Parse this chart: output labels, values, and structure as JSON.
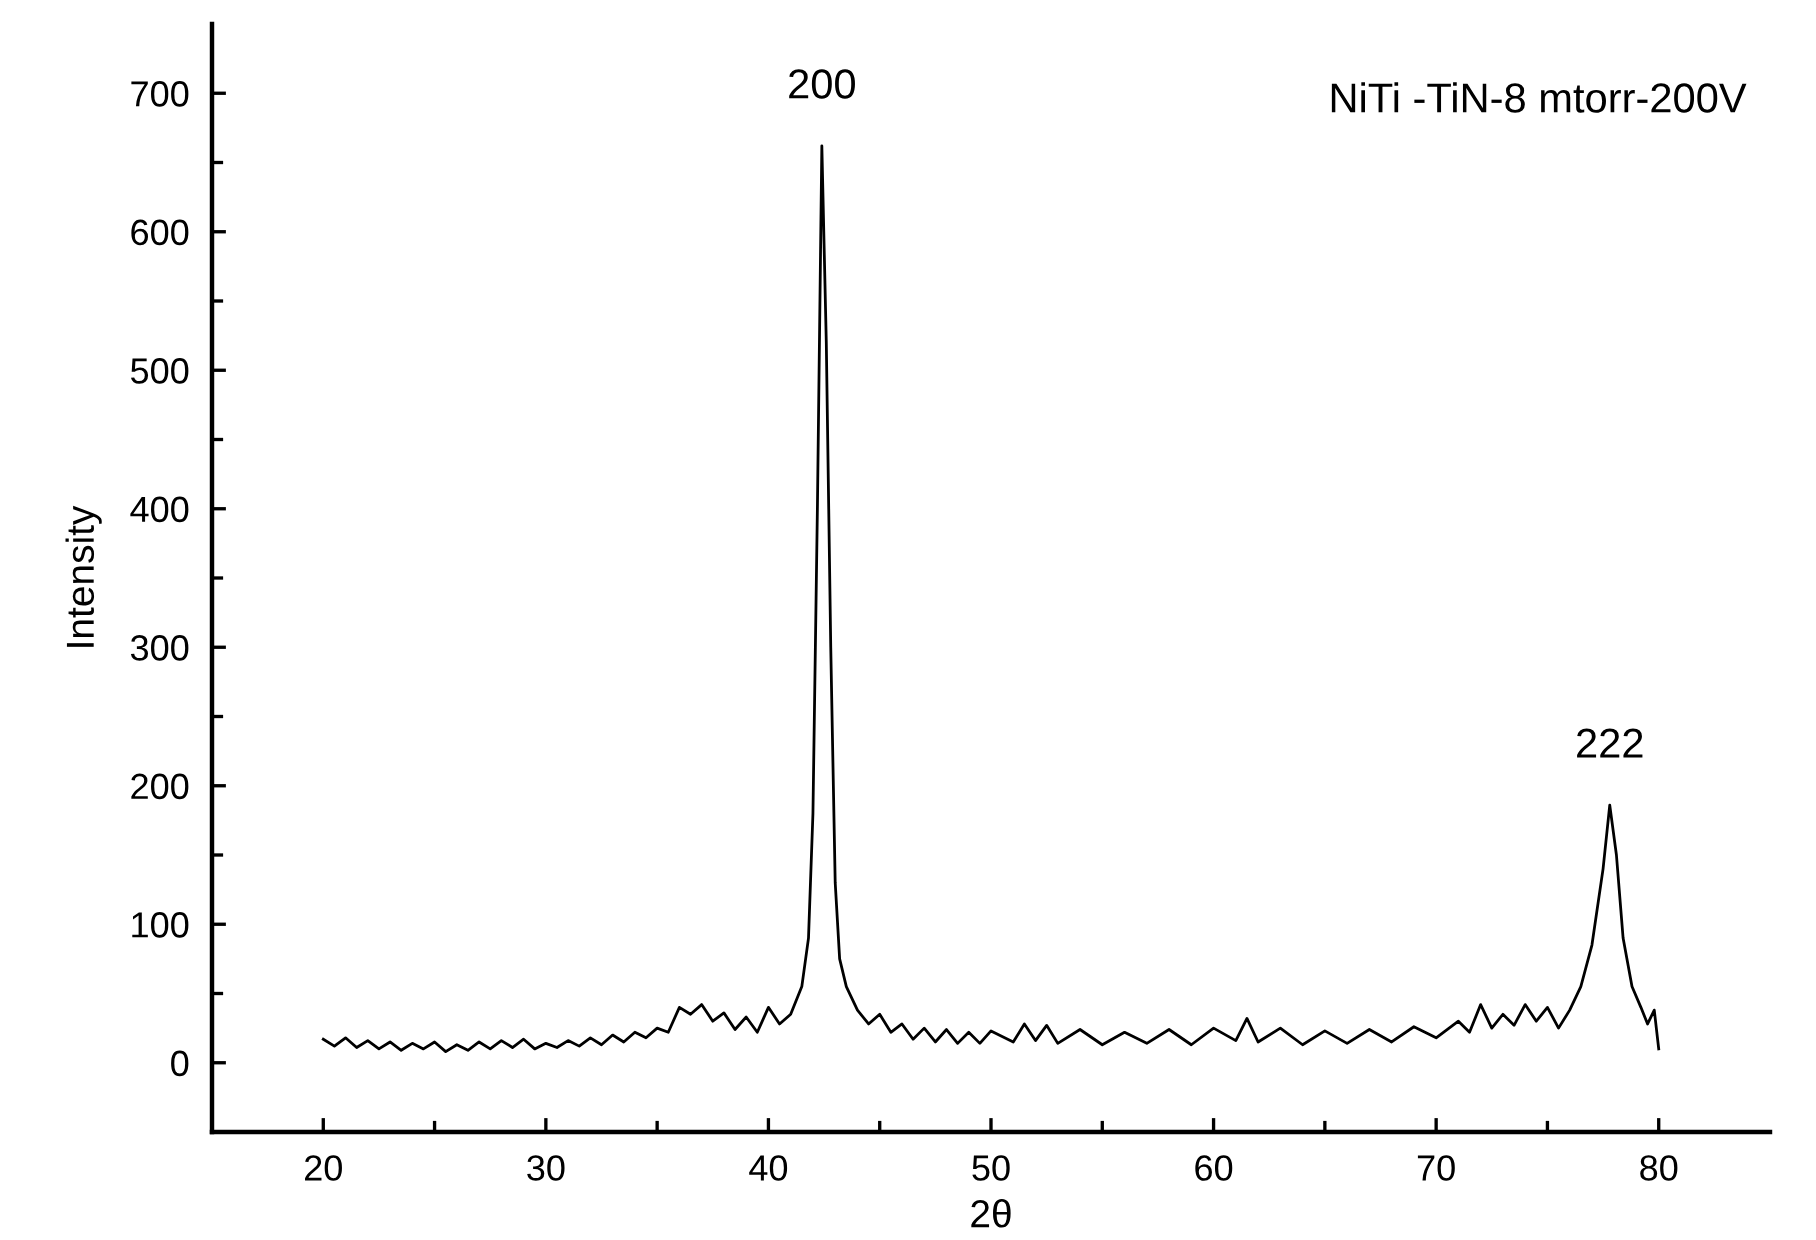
{
  "chart_data": {
    "type": "line",
    "xlabel": "2θ",
    "ylabel": "Intensity",
    "annotations": [
      "NiTi -TiN-8 mtorr-200V",
      {
        "text": "200",
        "x": 42.4,
        "y": 662
      },
      {
        "text": "222",
        "x": 77.8,
        "y": 186
      }
    ],
    "series": [
      {
        "color": "#000000",
        "x": [
          20,
          20.5,
          21,
          21.5,
          22,
          22.5,
          23,
          23.5,
          24,
          24.5,
          25,
          25.5,
          26,
          26.5,
          27,
          27.5,
          28,
          28.5,
          29,
          29.5,
          30,
          30.5,
          31,
          31.5,
          32,
          32.5,
          33,
          33.5,
          34,
          34.5,
          35,
          35.5,
          36,
          36.5,
          37,
          37.5,
          38,
          38.5,
          39,
          39.5,
          40,
          40.5,
          41,
          41.5,
          41.8,
          42.0,
          42.2,
          42.4,
          42.6,
          42.8,
          43.0,
          43.2,
          43.5,
          44,
          44.5,
          45,
          45.5,
          46,
          46.5,
          47,
          47.5,
          48,
          48.5,
          49,
          49.5,
          50,
          51,
          51.5,
          52,
          52.5,
          53,
          54,
          55,
          56,
          57,
          58,
          59,
          60,
          61,
          61.5,
          62,
          63,
          64,
          65,
          66,
          67,
          68,
          69,
          70,
          71,
          71.5,
          72,
          72.5,
          73,
          73.5,
          74,
          74.5,
          75,
          75.5,
          76,
          76.5,
          77,
          77.5,
          77.8,
          78.1,
          78.4,
          78.8,
          79.2,
          79.5,
          79.8,
          80
        ],
        "values": [
          17,
          12,
          18,
          11,
          16,
          10,
          15,
          9,
          14,
          10,
          15,
          8,
          13,
          9,
          15,
          10,
          16,
          11,
          17,
          10,
          14,
          11,
          16,
          12,
          18,
          13,
          20,
          15,
          22,
          18,
          25,
          22,
          40,
          35,
          42,
          30,
          36,
          24,
          33,
          22,
          40,
          28,
          35,
          55,
          90,
          180,
          400,
          662,
          520,
          300,
          130,
          75,
          55,
          38,
          28,
          35,
          22,
          28,
          17,
          25,
          15,
          24,
          14,
          22,
          14,
          23,
          15,
          28,
          16,
          27,
          14,
          24,
          13,
          22,
          14,
          24,
          13,
          25,
          16,
          32,
          15,
          25,
          13,
          23,
          14,
          24,
          15,
          26,
          18,
          30,
          22,
          42,
          25,
          35,
          27,
          42,
          30,
          40,
          25,
          38,
          55,
          85,
          140,
          186,
          150,
          90,
          55,
          40,
          28,
          38,
          10
        ]
      }
    ],
    "xlim": [
      15,
      85
    ],
    "ylim": [
      -50,
      750
    ],
    "xticks": [
      20,
      30,
      40,
      50,
      60,
      70,
      80,
      {
        "value": 25,
        "label": null
      },
      {
        "value": 35,
        "label": null
      },
      {
        "value": 45,
        "label": null
      },
      {
        "value": 55,
        "label": null
      },
      {
        "value": 65,
        "label": null
      },
      {
        "value": 75,
        "label": null
      }
    ],
    "yticks": [
      0,
      100,
      200,
      300,
      400,
      500,
      600,
      700,
      {
        "value": -50,
        "label": null
      },
      {
        "value": 50,
        "label": null
      },
      {
        "value": 150,
        "label": null
      },
      {
        "value": 250,
        "label": null
      },
      {
        "value": 350,
        "label": null
      },
      {
        "value": 450,
        "label": null
      },
      {
        "value": 550,
        "label": null
      },
      {
        "value": 650,
        "label": null
      }
    ],
    "grid": false,
    "legend": false,
    "marker": "none",
    "line_style": "solid"
  }
}
